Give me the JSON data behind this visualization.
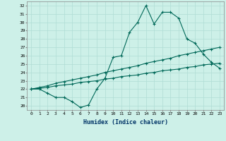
{
  "xlabel": "Humidex (Indice chaleur)",
  "background_color": "#cdf0e8",
  "line_color": "#006858",
  "grid_color": "#b0ddd5",
  "xlim": [
    -0.5,
    23.5
  ],
  "ylim": [
    19.5,
    32.5
  ],
  "xticks": [
    0,
    1,
    2,
    3,
    4,
    5,
    6,
    7,
    8,
    9,
    10,
    11,
    12,
    13,
    14,
    15,
    16,
    17,
    18,
    19,
    20,
    21,
    22,
    23
  ],
  "yticks": [
    20,
    21,
    22,
    23,
    24,
    25,
    26,
    27,
    28,
    29,
    30,
    31,
    32
  ],
  "line1_x": [
    0,
    1,
    2,
    3,
    4,
    5,
    6,
    7,
    8,
    9,
    10,
    11,
    12,
    13,
    14,
    15,
    16,
    17,
    18,
    19,
    20,
    21,
    22,
    23
  ],
  "line1_y": [
    22.0,
    22.0,
    21.5,
    21.0,
    21.0,
    20.5,
    19.8,
    20.1,
    22.0,
    23.3,
    25.8,
    26.0,
    28.8,
    30.0,
    32.0,
    29.8,
    31.2,
    31.2,
    30.5,
    28.0,
    27.5,
    26.2,
    25.2,
    24.5
  ],
  "line2_x": [
    0,
    1,
    2,
    3,
    4,
    5,
    6,
    7,
    8,
    9,
    10,
    11,
    12,
    13,
    14,
    15,
    16,
    17,
    18,
    19,
    20,
    21,
    22,
    23
  ],
  "line2_y": [
    22.0,
    22.1,
    22.2,
    22.4,
    22.5,
    22.6,
    22.8,
    22.9,
    23.0,
    23.2,
    23.3,
    23.5,
    23.6,
    23.7,
    23.9,
    24.0,
    24.2,
    24.3,
    24.4,
    24.6,
    24.7,
    24.9,
    25.0,
    25.1
  ],
  "line3_x": [
    0,
    1,
    2,
    3,
    4,
    5,
    6,
    7,
    8,
    9,
    10,
    11,
    12,
    13,
    14,
    15,
    16,
    17,
    18,
    19,
    20,
    21,
    22,
    23
  ],
  "line3_y": [
    22.0,
    22.2,
    22.4,
    22.7,
    22.9,
    23.1,
    23.3,
    23.5,
    23.7,
    24.0,
    24.2,
    24.4,
    24.6,
    24.8,
    25.1,
    25.3,
    25.5,
    25.7,
    26.0,
    26.2,
    26.4,
    26.6,
    26.8,
    27.0
  ]
}
